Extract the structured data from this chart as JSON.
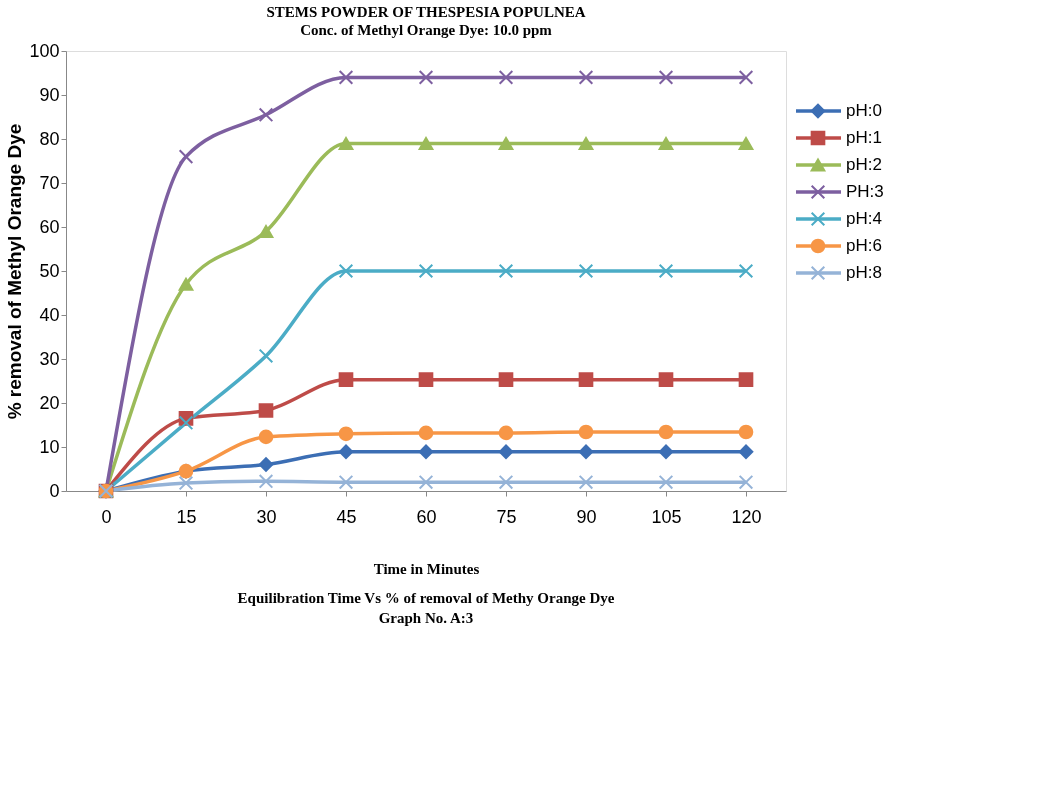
{
  "chart_data": {
    "type": "line",
    "title": "STEMS POWDER OF THESPESIA POPULNEA",
    "subtitle": "Conc. of Methyl Orange Dye: 10.0 ppm",
    "xlabel": "Time in Minutes",
    "ylabel": "% removal of Methyl Orange Dye",
    "annotations": [
      "Equilibration Time Vs % of removal of Methy Orange Dye",
      "Graph No. A:3"
    ],
    "categories": [
      "0",
      "15",
      "30",
      "45",
      "60",
      "75",
      "90",
      "105",
      "120"
    ],
    "series": [
      {
        "name": "pH:0",
        "color": "#3c6eb4",
        "marker": "diamond",
        "values": [
          0,
          4.5,
          6,
          8.9,
          8.9,
          8.9,
          8.9,
          8.9,
          8.9
        ]
      },
      {
        "name": "pH:1",
        "color": "#be4b48",
        "marker": "square",
        "values": [
          0,
          16.5,
          18.3,
          25.3,
          25.3,
          25.3,
          25.3,
          25.3,
          25.3
        ]
      },
      {
        "name": "pH:2",
        "color": "#9bbb59",
        "marker": "triangle",
        "values": [
          0,
          47,
          59,
          79,
          79,
          79,
          79,
          79,
          79
        ]
      },
      {
        "name": "PH:3",
        "color": "#7d5fa0",
        "marker": "cross",
        "values": [
          0,
          76,
          85.5,
          94,
          94,
          94,
          94,
          94,
          94
        ]
      },
      {
        "name": "pH:4",
        "color": "#4bacc6",
        "marker": "cross",
        "values": [
          0,
          15.5,
          30.7,
          50,
          50,
          50,
          50,
          50,
          50
        ]
      },
      {
        "name": "pH:6",
        "color": "#f79646",
        "marker": "circle",
        "values": [
          0,
          4.5,
          12.3,
          13,
          13.2,
          13.2,
          13.4,
          13.4,
          13.4
        ]
      },
      {
        "name": "pH:8",
        "color": "#95b3d7",
        "marker": "cross",
        "values": [
          0,
          1.8,
          2.2,
          2,
          2,
          2,
          2,
          2,
          2
        ]
      }
    ],
    "ylim": [
      0,
      100
    ],
    "yticks": [
      0,
      10,
      20,
      30,
      40,
      50,
      60,
      70,
      80,
      90,
      100
    ],
    "grid": false,
    "legend": "right",
    "line_style": "solid"
  }
}
